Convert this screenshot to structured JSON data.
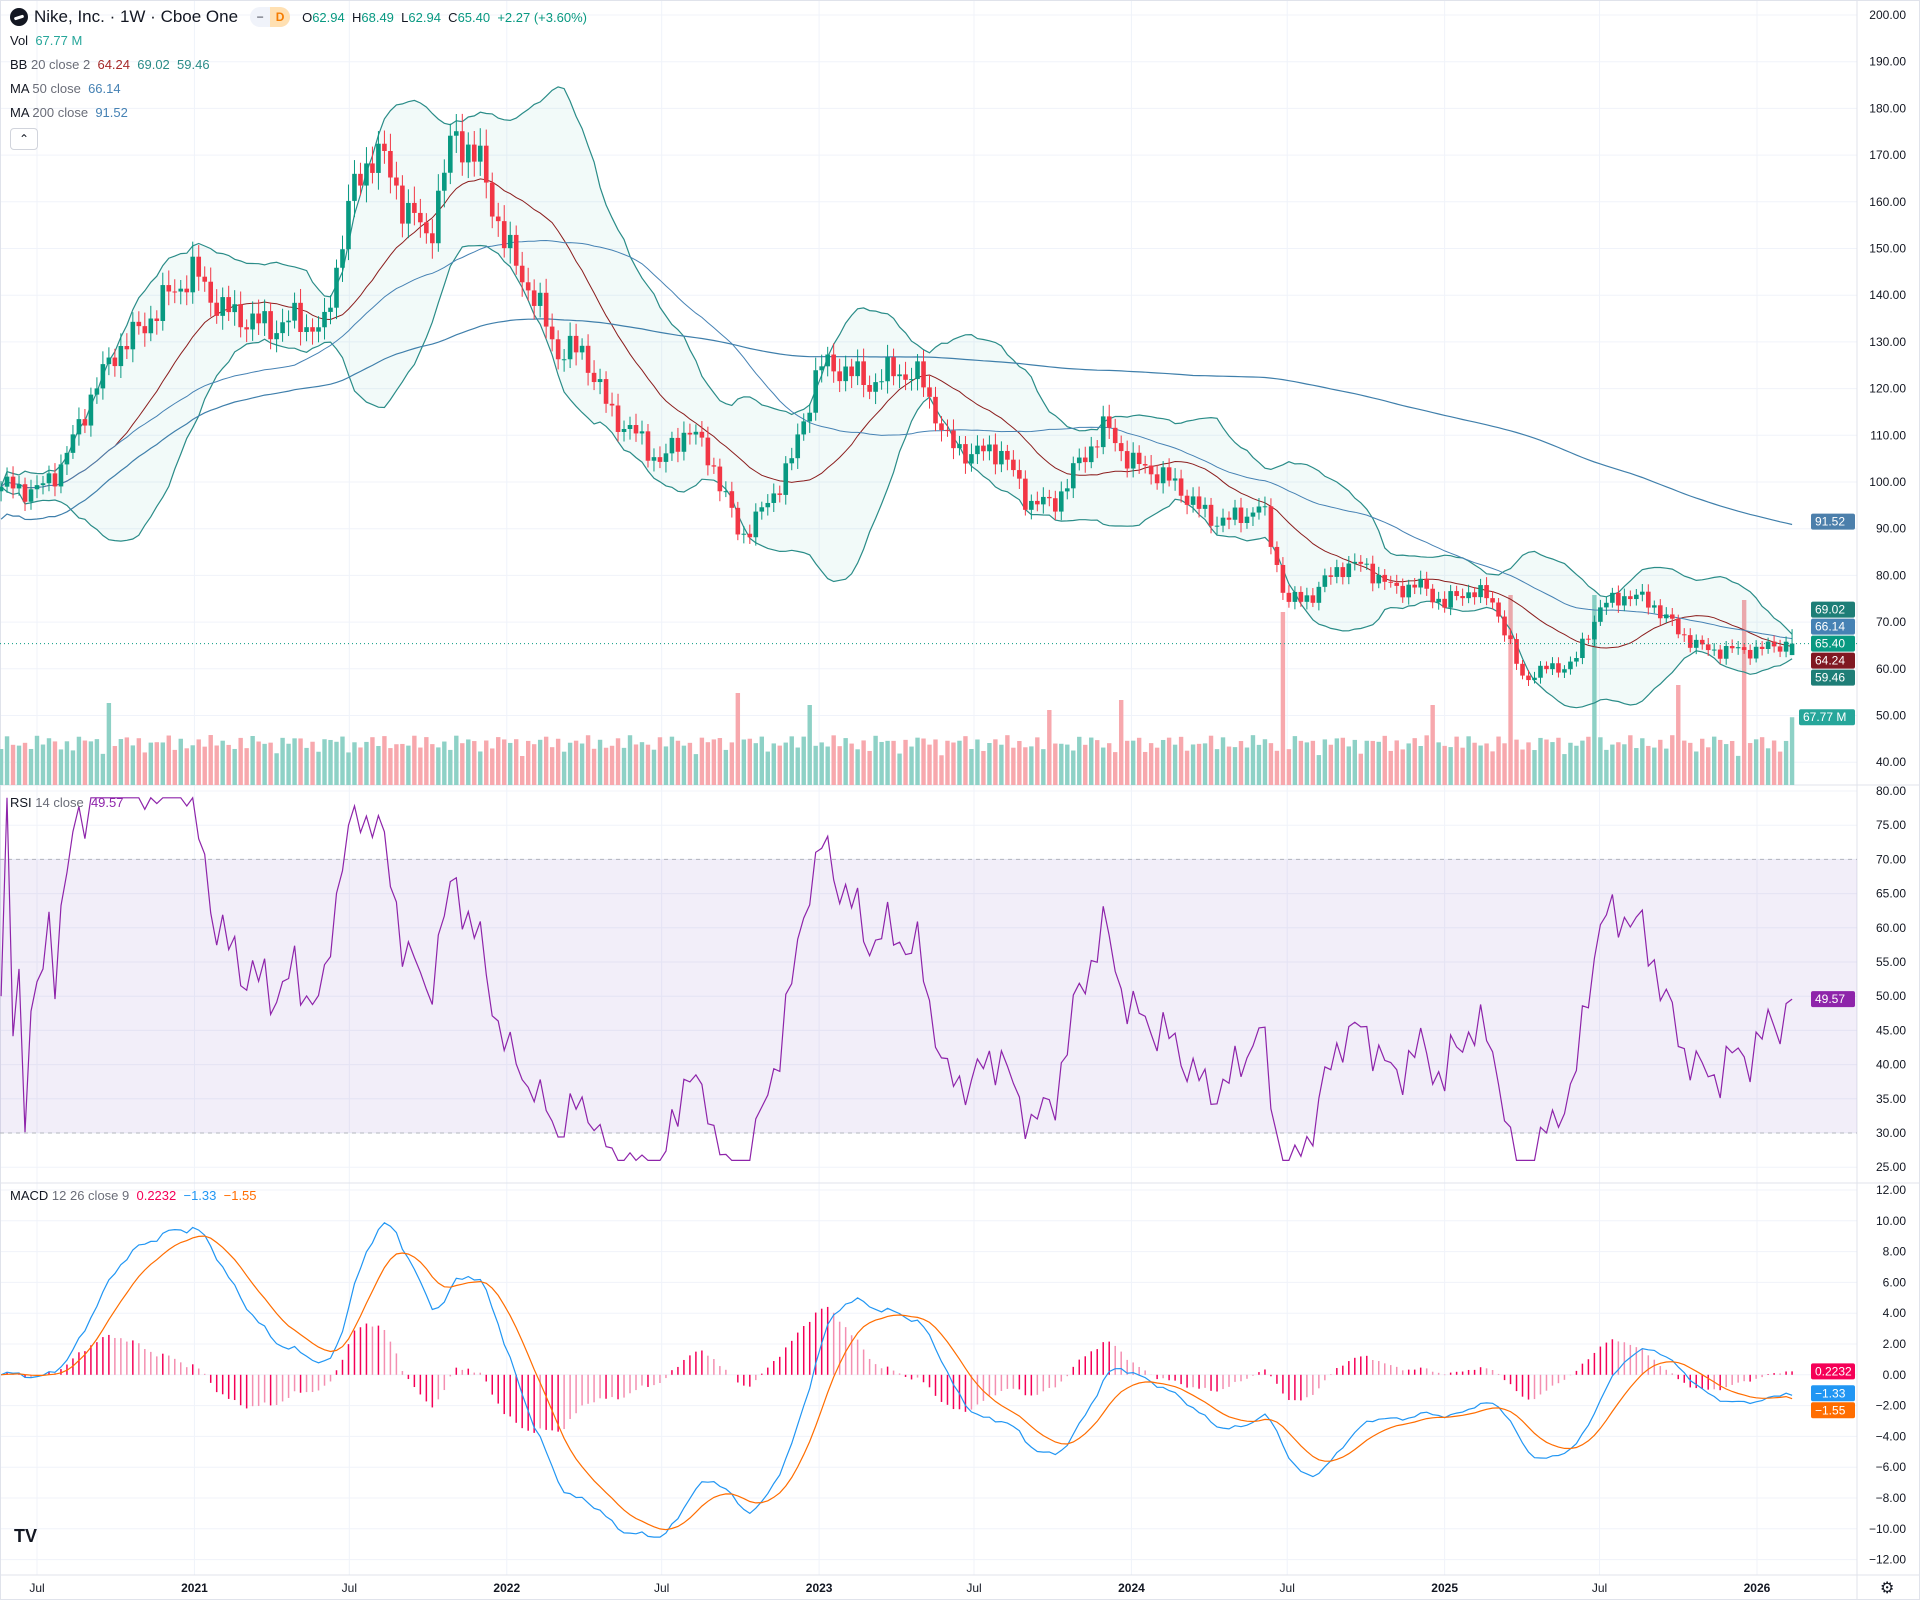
{
  "header": {
    "symbol": "Nike, Inc. · 1W · Cboe One",
    "badge_left": "−",
    "badge_right": "D",
    "o_label": "O",
    "open": "62.94",
    "h_label": "H",
    "high": "68.49",
    "l_label": "L",
    "low": "62.94",
    "c_label": "C",
    "close": "65.40",
    "change": "+2.27 (+3.60%)"
  },
  "indicators": {
    "vol": {
      "label": "Vol",
      "value": "67.77 M"
    },
    "bb": {
      "label": "BB",
      "params": "20 close 2",
      "basis": "64.24",
      "upper": "69.02",
      "lower": "59.46"
    },
    "ma50": {
      "label": "MA",
      "params": "50 close",
      "value": "66.14"
    },
    "ma200": {
      "label": "MA",
      "params": "200 close",
      "value": "91.52"
    },
    "rsi": {
      "label": "RSI",
      "params": "14 close",
      "value": "49.57"
    },
    "macd": {
      "label": "MACD",
      "params": "12 26 close 9",
      "hist": "0.2232",
      "macd": "−1.33",
      "signal": "−1.55"
    }
  },
  "controls": {
    "collapse_icon": "chevron-up",
    "collapse_glyph": "⌃",
    "logo_text": "TV",
    "settings_glyph": "⚙"
  },
  "colors": {
    "up": "#089981",
    "down": "#F23645",
    "vol_up": "#8ed1c6",
    "vol_down": "#f7a8ad",
    "bb_band": "#2a8c88",
    "bb_basis": "#8b1d1d",
    "ma50": "#4682b4",
    "ma200": "#3f7fab",
    "rsi": "#8e24aa",
    "macd": "#2196F3",
    "signal": "#FF6D00",
    "hist": "#F50057"
  },
  "chart_data": {
    "type": "candlestick",
    "interval": "1W",
    "price_axis": {
      "range": [
        40,
        200
      ],
      "ticks": [
        "200.00",
        "190.00",
        "180.00",
        "170.00",
        "160.00",
        "150.00",
        "140.00",
        "130.00",
        "120.00",
        "110.00",
        "100.00",
        "90.00",
        "80.00",
        "70.00",
        "60.00",
        "50.00",
        "40.00"
      ]
    },
    "rsi_axis": {
      "range": [
        25,
        80
      ],
      "ticks": [
        "80.00",
        "75.00",
        "70.00",
        "65.00",
        "60.00",
        "55.00",
        "50.00",
        "45.00",
        "40.00",
        "35.00",
        "30.00",
        "25.00"
      ],
      "bands": [
        30,
        70
      ]
    },
    "macd_axis": {
      "range": [
        -12,
        12
      ],
      "ticks": [
        "12.00",
        "10.00",
        "8.00",
        "6.00",
        "4.00",
        "2.00",
        "0.00",
        "−2.00",
        "−4.00",
        "−6.00",
        "−8.00",
        "−10.00",
        "−12.00"
      ]
    },
    "time_axis": [
      {
        "label": "Jul",
        "date": "2020-07-01",
        "bold": false
      },
      {
        "label": "2021",
        "date": "2021-01-01",
        "bold": true
      },
      {
        "label": "Jul",
        "date": "2021-07-01",
        "bold": false
      },
      {
        "label": "2022",
        "date": "2022-01-01",
        "bold": true
      },
      {
        "label": "Jul",
        "date": "2022-07-01",
        "bold": false
      },
      {
        "label": "2023",
        "date": "2023-01-01",
        "bold": true
      },
      {
        "label": "Jul",
        "date": "2023-07-01",
        "bold": false
      },
      {
        "label": "2024",
        "date": "2024-01-01",
        "bold": true
      },
      {
        "label": "Jul",
        "date": "2024-07-01",
        "bold": false
      },
      {
        "label": "2025",
        "date": "2025-01-01",
        "bold": true
      },
      {
        "label": "Jul",
        "date": "2025-07-01",
        "bold": false
      },
      {
        "label": "2026",
        "date": "2026-01-01",
        "bold": true
      }
    ],
    "monthly_close": [
      [
        "2020-06",
        99
      ],
      [
        "2020-07",
        98
      ],
      [
        "2020-08",
        104
      ],
      [
        "2020-09",
        118
      ],
      [
        "2020-10",
        128
      ],
      [
        "2020-11",
        133
      ],
      [
        "2020-12",
        140
      ],
      [
        "2021-01",
        145
      ],
      [
        "2021-02",
        137
      ],
      [
        "2021-03",
        135
      ],
      [
        "2021-04",
        133
      ],
      [
        "2021-05",
        135
      ],
      [
        "2021-06",
        132
      ],
      [
        "2021-07",
        160
      ],
      [
        "2021-08",
        172
      ],
      [
        "2021-09",
        160
      ],
      [
        "2021-10",
        152
      ],
      [
        "2021-11",
        175
      ],
      [
        "2021-12",
        168
      ],
      [
        "2022-01",
        150
      ],
      [
        "2022-02",
        140
      ],
      [
        "2022-03",
        128
      ],
      [
        "2022-04",
        128
      ],
      [
        "2022-05",
        115
      ],
      [
        "2022-06",
        110
      ],
      [
        "2022-07",
        104
      ],
      [
        "2022-08",
        112
      ],
      [
        "2022-09",
        103
      ],
      [
        "2022-10",
        88
      ],
      [
        "2022-11",
        95
      ],
      [
        "2022-12",
        105
      ],
      [
        "2023-01",
        125
      ],
      [
        "2023-02",
        124
      ],
      [
        "2023-03",
        121
      ],
      [
        "2023-04",
        124
      ],
      [
        "2023-05",
        122
      ],
      [
        "2023-06",
        108
      ],
      [
        "2023-07",
        106
      ],
      [
        "2023-08",
        107
      ],
      [
        "2023-09",
        96
      ],
      [
        "2023-10",
        95
      ],
      [
        "2023-11",
        104
      ],
      [
        "2023-12",
        112
      ],
      [
        "2024-01",
        104
      ],
      [
        "2024-02",
        102
      ],
      [
        "2024-03",
        98
      ],
      [
        "2024-04",
        92
      ],
      [
        "2024-05",
        92
      ],
      [
        "2024-06",
        95
      ],
      [
        "2024-07",
        74
      ],
      [
        "2024-08",
        76
      ],
      [
        "2024-09",
        82
      ],
      [
        "2024-10",
        82
      ],
      [
        "2024-11",
        77
      ],
      [
        "2024-12",
        78
      ],
      [
        "2025-01",
        74
      ],
      [
        "2025-02",
        77
      ],
      [
        "2025-03",
        74
      ],
      [
        "2025-04",
        58
      ],
      [
        "2025-05",
        60
      ],
      [
        "2025-06",
        61
      ],
      [
        "2025-07",
        73
      ],
      [
        "2025-08",
        76
      ],
      [
        "2025-09",
        74
      ],
      [
        "2025-10",
        68
      ],
      [
        "2025-11",
        64
      ],
      [
        "2025-12",
        64
      ],
      [
        "2026-01",
        64
      ],
      [
        "2026-02",
        65.4
      ]
    ],
    "last_bar": {
      "open": 62.94,
      "high": 68.49,
      "low": 62.94,
      "close": 65.4,
      "volume_m": 67.77
    },
    "volume_spikes_m": [
      [
        "2020-09-21",
        82
      ],
      [
        "2022-09-26",
        92
      ],
      [
        "2022-12-19",
        80
      ],
      [
        "2023-09-25",
        75
      ],
      [
        "2023-12-18",
        85
      ],
      [
        "2024-06-24",
        173
      ],
      [
        "2025-03-17",
        190
      ],
      [
        "2025-06-23",
        190
      ],
      [
        "2025-09-29",
        100
      ],
      [
        "2024-12-16",
        80
      ],
      [
        "2025-12-15",
        185
      ]
    ],
    "last_values": {
      "bb_upper": 69.02,
      "ma50": 66.14,
      "close": 65.4,
      "bb_basis": 64.24,
      "bb_lower": 59.46,
      "ma200": 91.52,
      "rsi": 49.57,
      "macd_hist": 0.2232,
      "macd": -1.33,
      "signal": -1.55
    }
  }
}
